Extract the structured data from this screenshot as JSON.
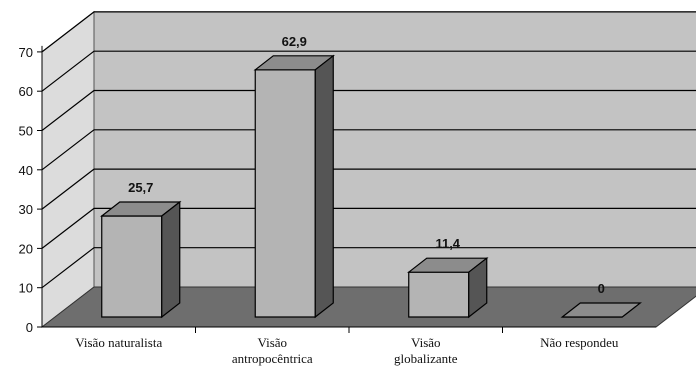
{
  "chart_data": {
    "type": "bar",
    "categories": [
      [
        "Visão naturalista"
      ],
      [
        "Visão",
        "antropocêntrica"
      ],
      [
        "Visão",
        "globalizante"
      ],
      [
        "Não respondeu"
      ]
    ],
    "values": [
      25.7,
      62.9,
      11.4,
      0
    ],
    "data_labels": [
      "25,7",
      "62,9",
      "11,4",
      "0"
    ],
    "y_ticks": [
      "0",
      "10",
      "20",
      "30",
      "40",
      "50",
      "60",
      "70"
    ],
    "ylim": [
      0,
      70
    ],
    "title": "",
    "xlabel": "",
    "ylabel": "",
    "grid": true,
    "three_d": true,
    "colors": {
      "wall": "#c3c3c3",
      "floor": "#6e6e6e",
      "side_wall": "#dcdcdc",
      "bar_front": "#b4b4b4",
      "bar_top": "#8c8c8c",
      "bar_side": "#555555"
    }
  }
}
